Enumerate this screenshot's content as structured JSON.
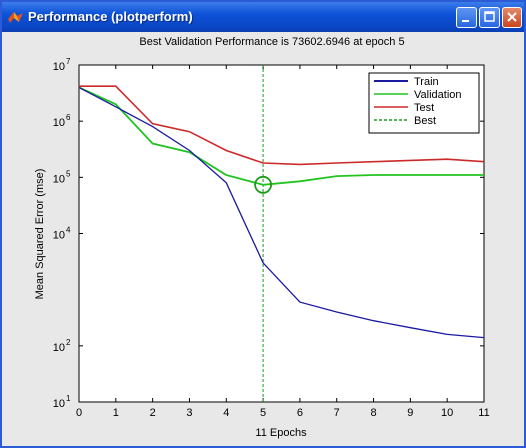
{
  "window": {
    "title": "Performance (plotperform)",
    "controls": [
      "minimize-icon",
      "maximize-icon",
      "close-icon"
    ]
  },
  "colors": {
    "titlebar": "#0d52d8",
    "train": "#1a1aa0",
    "validation": "#22c422",
    "test": "#cc2a2a",
    "best": "#1a9a1a"
  },
  "chart_data": {
    "type": "line",
    "title": "Best Validation Performance is 73602.6946 at epoch 5",
    "xlabel": "11 Epochs",
    "ylabel": "Mean Squared Error (mse)",
    "xlim": [
      0,
      11
    ],
    "ylim": [
      10,
      10000000
    ],
    "yscale": "log",
    "grid": false,
    "legend_position": "top-right",
    "x_ticks": [
      "0",
      "1",
      "2",
      "3",
      "4",
      "5",
      "6",
      "7",
      "8",
      "9",
      "10",
      "11"
    ],
    "y_ticks": [
      {
        "value": 10,
        "label": "10"
      },
      {
        "value": 100,
        "label": "10"
      },
      {
        "value": 10000,
        "label": "10"
      },
      {
        "value": 100000,
        "label": "10"
      },
      {
        "value": 1000000,
        "label": "10"
      },
      {
        "value": 10000000,
        "label": "10"
      }
    ],
    "y_tick_exponents": [
      "1",
      "2",
      "4",
      "5",
      "6",
      "7"
    ],
    "x": [
      0,
      1,
      2,
      3,
      4,
      5,
      6,
      7,
      8,
      9,
      10,
      11
    ],
    "series": [
      {
        "name": "Train",
        "style": "solid",
        "values": [
          4000000,
          1800000,
          800000,
          300000,
          80000,
          3000,
          600,
          400,
          280,
          210,
          160,
          140
        ]
      },
      {
        "name": "Validation",
        "style": "solid",
        "values": [
          4000000,
          2000000,
          400000,
          280000,
          110000,
          73602.6946,
          85000,
          105000,
          110000,
          110000,
          110000,
          110000
        ]
      },
      {
        "name": "Test",
        "style": "solid",
        "values": [
          4200000,
          4200000,
          900000,
          650000,
          300000,
          180000,
          170000,
          180000,
          190000,
          200000,
          210000,
          190000
        ]
      },
      {
        "name": "Best",
        "style": "dashed",
        "x": [
          5,
          5
        ],
        "values": [
          10,
          10000000
        ]
      }
    ],
    "best_marker": {
      "x": 5,
      "y": 73602.6946
    }
  }
}
